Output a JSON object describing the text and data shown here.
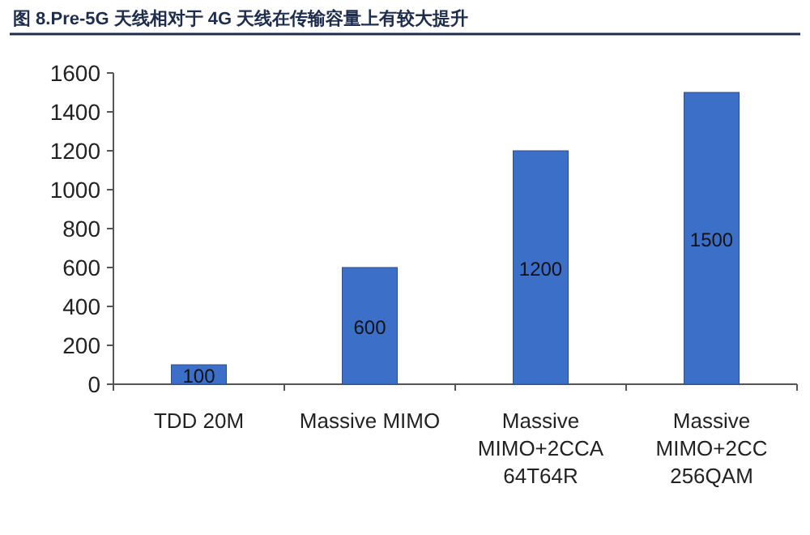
{
  "chart_data": {
    "type": "bar",
    "title": "图 8.Pre-5G 天线相对于 4G 天线在传输容量上有较大提升",
    "categories": [
      "TDD 20M",
      "Massive MIMO",
      "Massive MIMO+2CCA 64T64R",
      "Massive MIMO+2CC 256QAM"
    ],
    "values": [
      100,
      600,
      1200,
      1500
    ],
    "color": "#3c6fc8",
    "ylim": [
      0,
      1600
    ],
    "yticks": [
      0,
      200,
      400,
      600,
      800,
      1000,
      1200,
      1400,
      1600
    ],
    "grid": false,
    "data_labels": true
  }
}
